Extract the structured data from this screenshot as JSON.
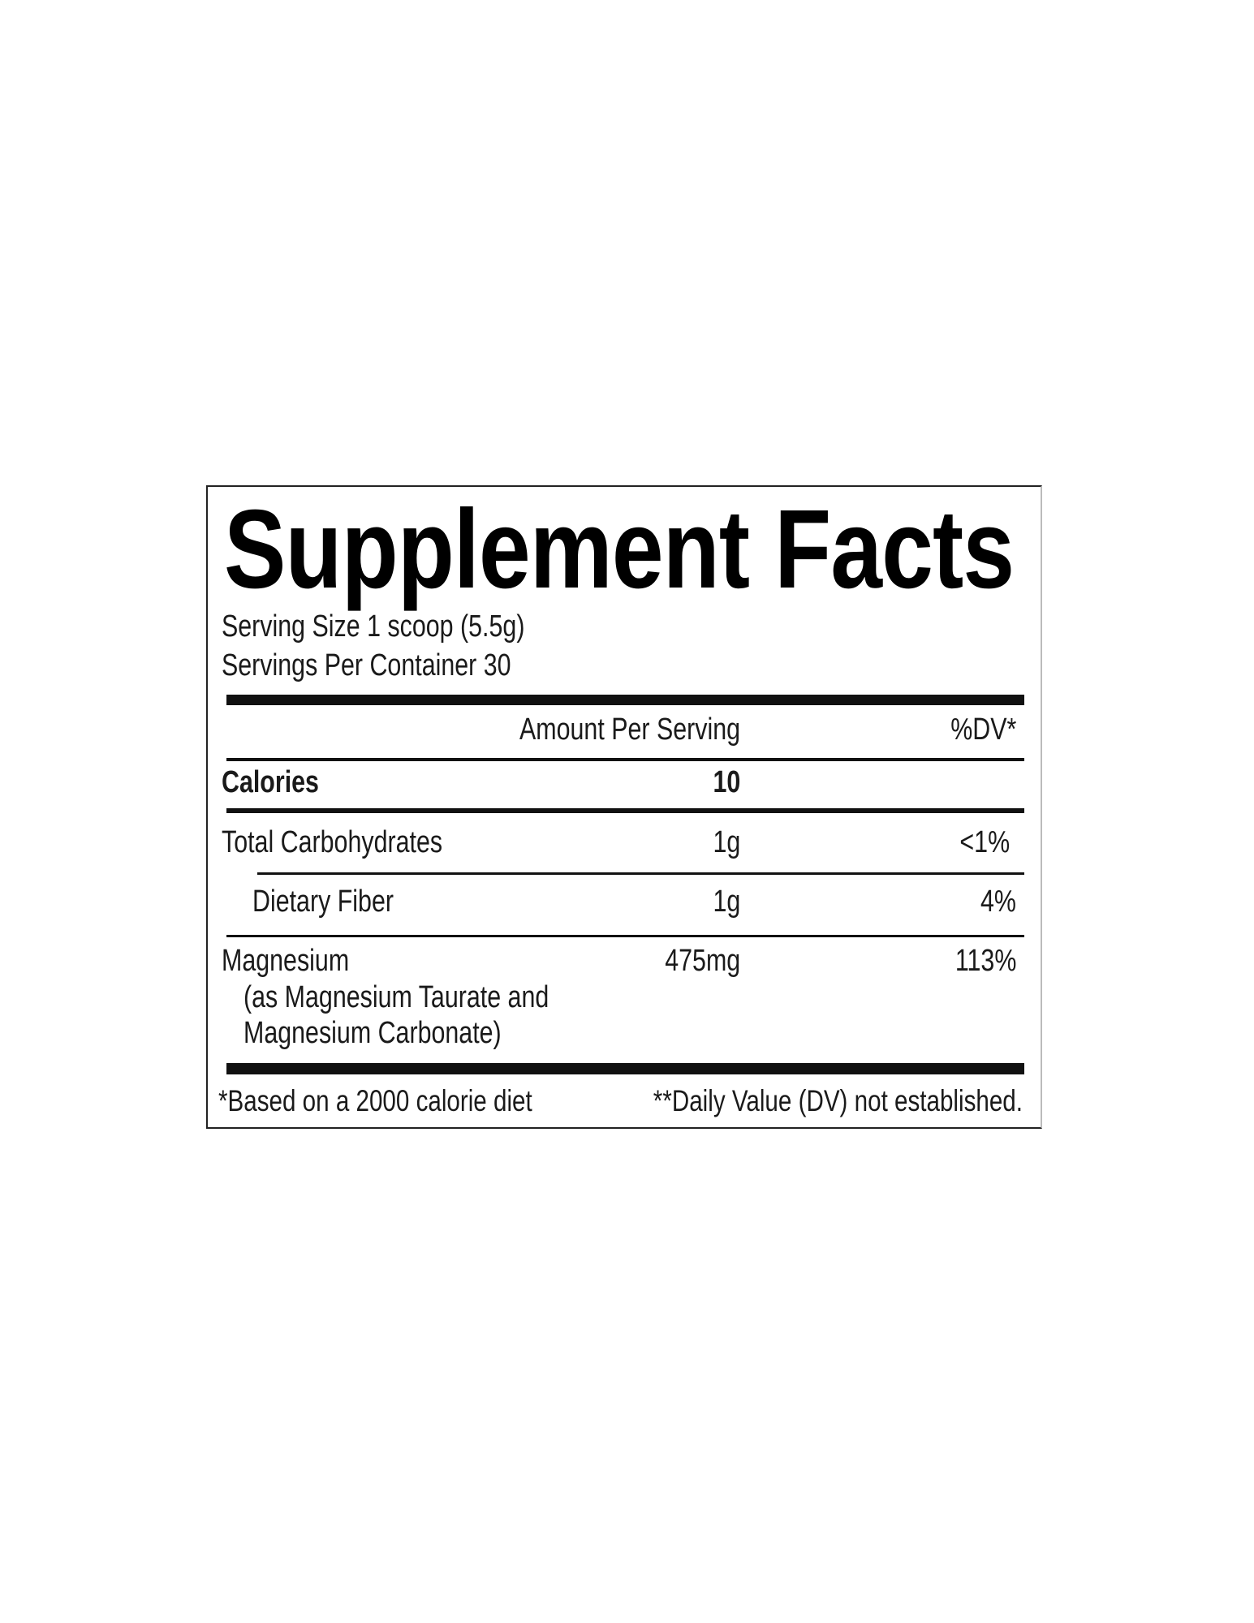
{
  "label": {
    "title": "Supplement Facts",
    "serving_size": "Serving Size 1 scoop (5.5g)",
    "servings_per_container": "Servings Per Container 30",
    "header": {
      "amount": "Amount Per Serving",
      "dv": "%DV*"
    },
    "rows": [
      {
        "name": "Calories",
        "amount": "10",
        "dv": ""
      },
      {
        "name": "Total Carbohydrates",
        "amount": "1g",
        "dv": "<1%"
      },
      {
        "name": "Dietary Fiber",
        "amount": "1g",
        "dv": "4%"
      },
      {
        "name": "Magnesium",
        "detail_1": "(as Magnesium Taurate and",
        "detail_2": "Magnesium Carbonate)",
        "amount": "475mg",
        "dv": "113%"
      }
    ],
    "footnote_1": "*Based on a 2000 calorie diet",
    "footnote_2": "**Daily Value (DV) not established."
  },
  "colors": {
    "text": "#1a1a1a",
    "rules": "#111111",
    "background": "#ffffff"
  }
}
